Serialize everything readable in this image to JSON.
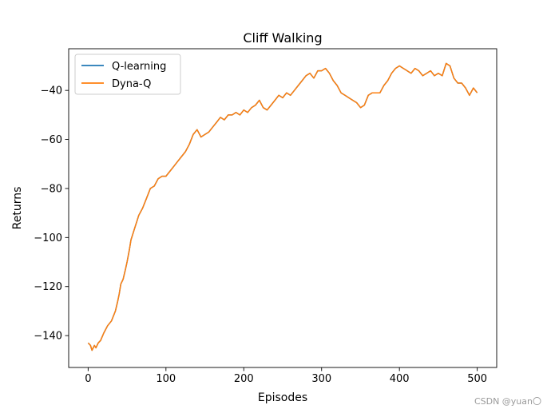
{
  "chart_data": {
    "type": "line",
    "title": "Cliff Walking",
    "xlabel": "Episodes",
    "ylabel": "Returns",
    "xlim": [
      -25,
      525
    ],
    "ylim": [
      -153,
      -23
    ],
    "xticks": [
      0,
      100,
      200,
      300,
      400,
      500
    ],
    "yticks": [
      -140,
      -120,
      -100,
      -80,
      -60,
      -40
    ],
    "ytick_labels": [
      "−140",
      "−120",
      "−100",
      "−80",
      "−60",
      "−40"
    ],
    "legend_position": "upper-left",
    "grid": false,
    "series": [
      {
        "name": "Q-learning",
        "color": "#1f77b4",
        "points": [
          [
            0,
            -143
          ],
          [
            3,
            -144
          ],
          [
            5,
            -146
          ],
          [
            8,
            -144
          ],
          [
            10,
            -145
          ],
          [
            13,
            -143
          ],
          [
            16,
            -142
          ],
          [
            20,
            -139
          ],
          [
            25,
            -136
          ],
          [
            30,
            -134
          ],
          [
            35,
            -130
          ],
          [
            38,
            -126
          ],
          [
            40,
            -123
          ],
          [
            42,
            -119
          ],
          [
            45,
            -117
          ],
          [
            48,
            -113
          ],
          [
            50,
            -110
          ],
          [
            53,
            -105
          ],
          [
            55,
            -101
          ],
          [
            58,
            -98
          ],
          [
            60,
            -96
          ],
          [
            63,
            -93
          ],
          [
            65,
            -91
          ],
          [
            70,
            -88
          ],
          [
            75,
            -84
          ],
          [
            80,
            -80
          ],
          [
            85,
            -79
          ],
          [
            90,
            -76
          ],
          [
            95,
            -75
          ],
          [
            100,
            -75
          ],
          [
            105,
            -73
          ],
          [
            110,
            -71
          ],
          [
            115,
            -69
          ],
          [
            120,
            -67
          ],
          [
            125,
            -65
          ],
          [
            130,
            -62
          ],
          [
            135,
            -58
          ],
          [
            140,
            -56
          ],
          [
            145,
            -59
          ],
          [
            150,
            -58
          ],
          [
            155,
            -57
          ],
          [
            160,
            -55
          ],
          [
            165,
            -53
          ],
          [
            170,
            -51
          ],
          [
            175,
            -52
          ],
          [
            180,
            -50
          ],
          [
            185,
            -50
          ],
          [
            190,
            -49
          ],
          [
            195,
            -50
          ],
          [
            200,
            -48
          ],
          [
            205,
            -49
          ],
          [
            210,
            -47
          ],
          [
            215,
            -46
          ],
          [
            220,
            -44
          ],
          [
            225,
            -47
          ],
          [
            230,
            -48
          ],
          [
            235,
            -46
          ],
          [
            240,
            -44
          ],
          [
            245,
            -42
          ],
          [
            250,
            -43
          ],
          [
            255,
            -41
          ],
          [
            260,
            -42
          ],
          [
            265,
            -40
          ],
          [
            270,
            -38
          ],
          [
            275,
            -36
          ],
          [
            280,
            -34
          ],
          [
            285,
            -33
          ],
          [
            290,
            -35
          ],
          [
            295,
            -32
          ],
          [
            300,
            -32
          ],
          [
            305,
            -31
          ],
          [
            310,
            -33
          ],
          [
            315,
            -36
          ],
          [
            320,
            -38
          ],
          [
            325,
            -41
          ],
          [
            330,
            -42
          ],
          [
            335,
            -43
          ],
          [
            340,
            -44
          ],
          [
            345,
            -45
          ],
          [
            350,
            -47
          ],
          [
            355,
            -46
          ],
          [
            360,
            -42
          ],
          [
            365,
            -41
          ],
          [
            370,
            -41
          ],
          [
            375,
            -41
          ],
          [
            380,
            -38
          ],
          [
            385,
            -36
          ],
          [
            390,
            -33
          ],
          [
            395,
            -31
          ],
          [
            400,
            -30
          ],
          [
            405,
            -31
          ],
          [
            410,
            -32
          ],
          [
            415,
            -33
          ],
          [
            420,
            -31
          ],
          [
            425,
            -32
          ],
          [
            430,
            -34
          ],
          [
            435,
            -33
          ],
          [
            440,
            -32
          ],
          [
            445,
            -34
          ],
          [
            450,
            -33
          ],
          [
            455,
            -34
          ],
          [
            460,
            -29
          ],
          [
            465,
            -30
          ],
          [
            470,
            -35
          ],
          [
            475,
            -37
          ],
          [
            480,
            -37
          ],
          [
            485,
            -39
          ],
          [
            490,
            -42
          ],
          [
            495,
            -39
          ],
          [
            500,
            -41
          ]
        ]
      },
      {
        "name": "Dyna-Q",
        "color": "#ff7f0e",
        "points": [
          [
            0,
            -143
          ],
          [
            3,
            -144
          ],
          [
            5,
            -146
          ],
          [
            8,
            -144
          ],
          [
            10,
            -145
          ],
          [
            13,
            -143
          ],
          [
            16,
            -142
          ],
          [
            20,
            -139
          ],
          [
            25,
            -136
          ],
          [
            30,
            -134
          ],
          [
            35,
            -130
          ],
          [
            38,
            -126
          ],
          [
            40,
            -123
          ],
          [
            42,
            -119
          ],
          [
            45,
            -117
          ],
          [
            48,
            -113
          ],
          [
            50,
            -110
          ],
          [
            53,
            -105
          ],
          [
            55,
            -101
          ],
          [
            58,
            -98
          ],
          [
            60,
            -96
          ],
          [
            63,
            -93
          ],
          [
            65,
            -91
          ],
          [
            70,
            -88
          ],
          [
            75,
            -84
          ],
          [
            80,
            -80
          ],
          [
            85,
            -79
          ],
          [
            90,
            -76
          ],
          [
            95,
            -75
          ],
          [
            100,
            -75
          ],
          [
            105,
            -73
          ],
          [
            110,
            -71
          ],
          [
            115,
            -69
          ],
          [
            120,
            -67
          ],
          [
            125,
            -65
          ],
          [
            130,
            -62
          ],
          [
            135,
            -58
          ],
          [
            140,
            -56
          ],
          [
            145,
            -59
          ],
          [
            150,
            -58
          ],
          [
            155,
            -57
          ],
          [
            160,
            -55
          ],
          [
            165,
            -53
          ],
          [
            170,
            -51
          ],
          [
            175,
            -52
          ],
          [
            180,
            -50
          ],
          [
            185,
            -50
          ],
          [
            190,
            -49
          ],
          [
            195,
            -50
          ],
          [
            200,
            -48
          ],
          [
            205,
            -49
          ],
          [
            210,
            -47
          ],
          [
            215,
            -46
          ],
          [
            220,
            -44
          ],
          [
            225,
            -47
          ],
          [
            230,
            -48
          ],
          [
            235,
            -46
          ],
          [
            240,
            -44
          ],
          [
            245,
            -42
          ],
          [
            250,
            -43
          ],
          [
            255,
            -41
          ],
          [
            260,
            -42
          ],
          [
            265,
            -40
          ],
          [
            270,
            -38
          ],
          [
            275,
            -36
          ],
          [
            280,
            -34
          ],
          [
            285,
            -33
          ],
          [
            290,
            -35
          ],
          [
            295,
            -32
          ],
          [
            300,
            -32
          ],
          [
            305,
            -31
          ],
          [
            310,
            -33
          ],
          [
            315,
            -36
          ],
          [
            320,
            -38
          ],
          [
            325,
            -41
          ],
          [
            330,
            -42
          ],
          [
            335,
            -43
          ],
          [
            340,
            -44
          ],
          [
            345,
            -45
          ],
          [
            350,
            -47
          ],
          [
            355,
            -46
          ],
          [
            360,
            -42
          ],
          [
            365,
            -41
          ],
          [
            370,
            -41
          ],
          [
            375,
            -41
          ],
          [
            380,
            -38
          ],
          [
            385,
            -36
          ],
          [
            390,
            -33
          ],
          [
            395,
            -31
          ],
          [
            400,
            -30
          ],
          [
            405,
            -31
          ],
          [
            410,
            -32
          ],
          [
            415,
            -33
          ],
          [
            420,
            -31
          ],
          [
            425,
            -32
          ],
          [
            430,
            -34
          ],
          [
            435,
            -33
          ],
          [
            440,
            -32
          ],
          [
            445,
            -34
          ],
          [
            450,
            -33
          ],
          [
            455,
            -34
          ],
          [
            460,
            -29
          ],
          [
            465,
            -30
          ],
          [
            470,
            -35
          ],
          [
            475,
            -37
          ],
          [
            480,
            -37
          ],
          [
            485,
            -39
          ],
          [
            490,
            -42
          ],
          [
            495,
            -39
          ],
          [
            500,
            -41
          ]
        ]
      }
    ]
  },
  "watermark": "CSDN @yuan〇"
}
